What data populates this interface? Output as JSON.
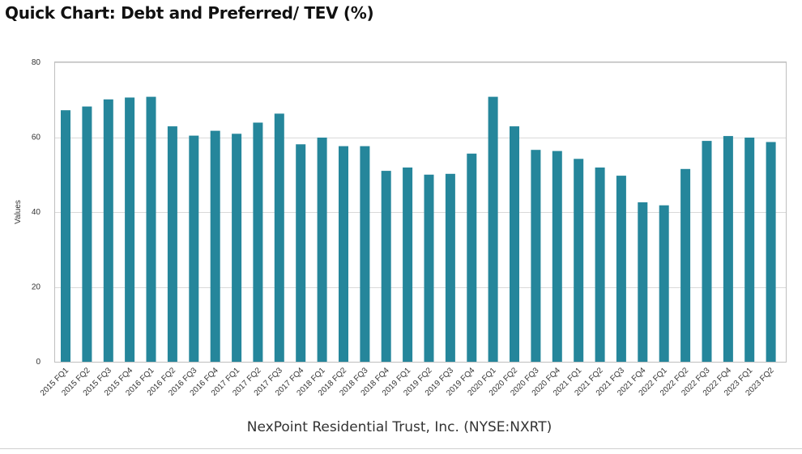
{
  "title": "Quick Chart: Debt and Preferred/ TEV (%)",
  "colors": {
    "bar": "#25869b",
    "grid": "#d9d9d9",
    "frame": "#bfbfbf"
  },
  "chart_data": {
    "type": "bar",
    "title": "Quick Chart: Debt and Preferred/ TEV (%)",
    "xlabel": "NexPoint Residential Trust, Inc. (NYSE:NXRT)",
    "ylabel": "Values",
    "ylim": [
      0,
      80
    ],
    "yticks": [
      0,
      20,
      40,
      60,
      80
    ],
    "grid": true,
    "legend": "none",
    "categories": [
      "2015 FQ1",
      "2015 FQ2",
      "2015 FQ3",
      "2015 FQ4",
      "2016 FQ1",
      "2016 FQ2",
      "2016 FQ3",
      "2016 FQ4",
      "2017 FQ1",
      "2017 FQ2",
      "2017 FQ3",
      "2017 FQ4",
      "2018 FQ1",
      "2018 FQ2",
      "2018 FQ3",
      "2018 FQ4",
      "2019 FQ1",
      "2019 FQ2",
      "2019 FQ3",
      "2019 FQ4",
      "2020 FQ1",
      "2020 FQ2",
      "2020 FQ3",
      "2020 FQ4",
      "2021 FQ1",
      "2021 FQ2",
      "2021 FQ3",
      "2021 FQ4",
      "2022 FQ1",
      "2022 FQ2",
      "2022 FQ3",
      "2022 FQ4",
      "2023 FQ1",
      "2023 FQ2"
    ],
    "values": [
      67.2,
      68.2,
      70.1,
      70.6,
      70.8,
      62.9,
      60.4,
      61.7,
      60.9,
      63.9,
      66.3,
      58.1,
      59.9,
      57.6,
      57.6,
      51.0,
      51.9,
      50.0,
      50.2,
      55.6,
      70.8,
      62.9,
      56.6,
      56.3,
      54.2,
      51.9,
      49.7,
      42.6,
      41.8,
      51.5,
      59.0,
      60.3,
      59.9,
      58.7
    ]
  }
}
